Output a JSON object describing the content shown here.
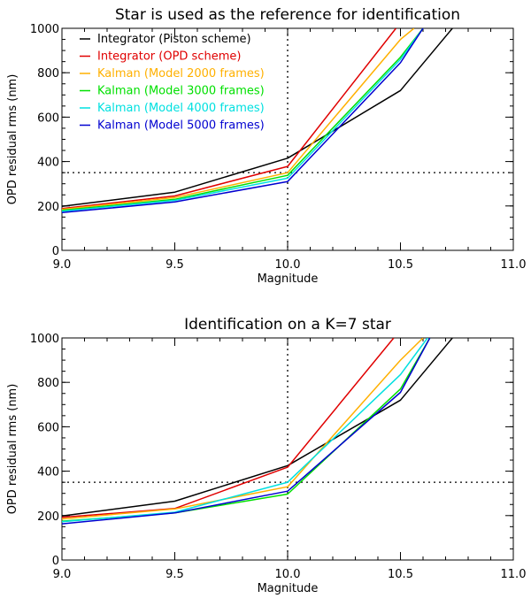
{
  "chart_data": [
    {
      "type": "line",
      "title": "Star is used as the reference for identification",
      "xlabel": "Magnitude",
      "ylabel": "OPD residual rms (nm)",
      "xlim": [
        9.0,
        11.0
      ],
      "ylim": [
        0,
        1000
      ],
      "x_ticks": [
        "9.0",
        "9.5",
        "10.0",
        "10.5",
        "11.0"
      ],
      "y_ticks": [
        "0",
        "200",
        "400",
        "600",
        "800",
        "1000"
      ],
      "legend_position": "top-left",
      "reference_lines": {
        "horizontal_y": 350,
        "vertical_x": 10.0,
        "style": "dotted"
      },
      "series": [
        {
          "name": "Integrator (Piston scheme)",
          "color": "#000000",
          "x": [
            9.0,
            9.5,
            10.0,
            10.5,
            10.73
          ],
          "y": [
            198,
            262,
            415,
            720,
            1000
          ]
        },
        {
          "name": "Integrator (OPD scheme)",
          "color": "#e00000",
          "x": [
            9.0,
            9.5,
            10.0,
            10.48
          ],
          "y": [
            188,
            245,
            378,
            1000
          ]
        },
        {
          "name": "Kalman (Model 2000 frames)",
          "color": "#ffb000",
          "x": [
            9.0,
            9.5,
            10.0,
            10.5,
            10.56
          ],
          "y": [
            185,
            238,
            350,
            950,
            1000
          ]
        },
        {
          "name": "Kalman (Model 3000 frames)",
          "color": "#00e000",
          "x": [
            9.0,
            9.5,
            10.0,
            10.5,
            10.6
          ],
          "y": [
            180,
            230,
            338,
            870,
            1000
          ]
        },
        {
          "name": "Kalman (Model 4000 frames)",
          "color": "#00e0e0",
          "x": [
            9.0,
            9.5,
            10.0,
            10.5,
            10.6
          ],
          "y": [
            176,
            225,
            325,
            860,
            1000
          ]
        },
        {
          "name": "Kalman (Model 5000 frames)",
          "color": "#0000d0",
          "x": [
            9.0,
            9.5,
            10.0,
            10.5,
            10.6
          ],
          "y": [
            170,
            218,
            310,
            845,
            1000
          ]
        }
      ]
    },
    {
      "type": "line",
      "title": "Identification on a K=7 star",
      "xlabel": "Magnitude",
      "ylabel": "OPD residual rms (nm)",
      "xlim": [
        9.0,
        11.0
      ],
      "ylim": [
        0,
        1000
      ],
      "x_ticks": [
        "9.0",
        "9.5",
        "10.0",
        "10.5",
        "11.0"
      ],
      "y_ticks": [
        "0",
        "200",
        "400",
        "600",
        "800",
        "1000"
      ],
      "reference_lines": {
        "horizontal_y": 350,
        "vertical_x": 10.0,
        "style": "dotted"
      },
      "series": [
        {
          "color": "#000000",
          "x": [
            9.0,
            9.5,
            10.0,
            10.5,
            10.73
          ],
          "y": [
            198,
            265,
            425,
            720,
            1000
          ]
        },
        {
          "color": "#e00000",
          "x": [
            9.0,
            9.5,
            10.0,
            10.47
          ],
          "y": [
            192,
            232,
            418,
            1000
          ]
        },
        {
          "color": "#ffb000",
          "x": [
            9.0,
            9.5,
            10.0,
            10.5,
            10.6
          ],
          "y": [
            185,
            230,
            330,
            900,
            1000
          ]
        },
        {
          "color": "#00e000",
          "x": [
            9.0,
            9.5,
            10.0,
            10.5,
            10.63
          ],
          "y": [
            175,
            212,
            297,
            770,
            1000
          ]
        },
        {
          "color": "#00e0e0",
          "x": [
            9.0,
            9.5,
            10.0,
            10.5,
            10.62
          ],
          "y": [
            172,
            215,
            350,
            835,
            1000
          ]
        },
        {
          "color": "#0000d0",
          "x": [
            9.0,
            9.5,
            10.0,
            10.5,
            10.63
          ],
          "y": [
            163,
            212,
            310,
            755,
            1000
          ]
        }
      ]
    }
  ]
}
